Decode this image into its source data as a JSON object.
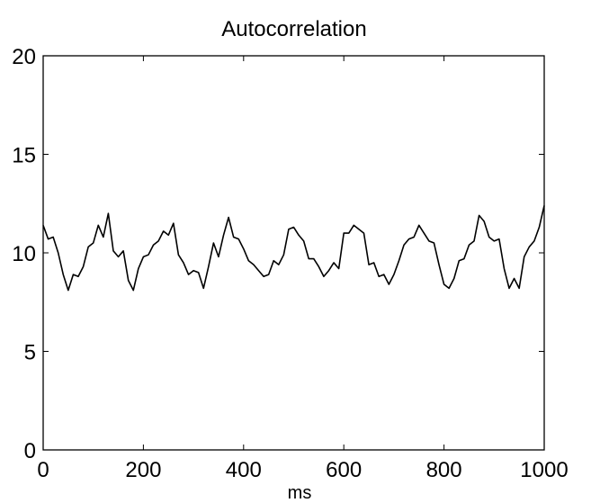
{
  "chart_data": {
    "type": "line",
    "title": "Autocorrelation",
    "xlabel": "ms",
    "ylabel": "",
    "xlim": [
      0,
      1000
    ],
    "ylim": [
      0,
      20
    ],
    "xticks": [
      0,
      200,
      400,
      600,
      800,
      1000
    ],
    "yticks": [
      0,
      5,
      10,
      15,
      20
    ],
    "grid": false,
    "line_color": "#000000",
    "series": [
      {
        "x": [
          0,
          10,
          20,
          30,
          40,
          50,
          60,
          70,
          80,
          90,
          100,
          110,
          120,
          130,
          140,
          150,
          160,
          170,
          180,
          190,
          200,
          210,
          220,
          230,
          240,
          250,
          260,
          270,
          280,
          290,
          300,
          310,
          320,
          330,
          340,
          350,
          360,
          370,
          380,
          390,
          400,
          410,
          420,
          430,
          440,
          450,
          460,
          470,
          480,
          490,
          500,
          510,
          520,
          530,
          540,
          550,
          560,
          570,
          580,
          590,
          600,
          610,
          620,
          630,
          640,
          650,
          660,
          670,
          680,
          690,
          700,
          710,
          720,
          730,
          740,
          750,
          760,
          770,
          780,
          790,
          800,
          810,
          820,
          830,
          840,
          850,
          860,
          870,
          880,
          890,
          900,
          910,
          920,
          930,
          940,
          950,
          960,
          970,
          980,
          990,
          1000
        ],
        "y": [
          11.4,
          10.7,
          10.8,
          10.0,
          8.9,
          8.1,
          8.9,
          8.8,
          9.3,
          10.3,
          10.5,
          11.4,
          10.8,
          12.0,
          10.1,
          9.8,
          10.1,
          8.6,
          8.1,
          9.2,
          9.8,
          9.9,
          10.4,
          10.6,
          11.1,
          10.9,
          11.5,
          9.9,
          9.5,
          8.9,
          9.1,
          9.0,
          8.2,
          9.3,
          10.5,
          9.8,
          10.9,
          11.8,
          10.8,
          10.7,
          10.2,
          9.6,
          9.4,
          9.1,
          8.8,
          8.9,
          9.6,
          9.4,
          9.9,
          11.2,
          11.3,
          10.9,
          10.6,
          9.7,
          9.7,
          9.3,
          8.8,
          9.1,
          9.5,
          9.2,
          11.0,
          11.0,
          11.4,
          11.2,
          11.0,
          9.4,
          9.5,
          8.8,
          8.9,
          8.4,
          8.9,
          9.6,
          10.4,
          10.7,
          10.8,
          11.4,
          11.0,
          10.6,
          10.5,
          9.4,
          8.4,
          8.2,
          8.7,
          9.6,
          9.7,
          10.4,
          10.6,
          11.9,
          11.6,
          10.8,
          10.6,
          10.7,
          9.2,
          8.2,
          8.7,
          8.2,
          9.8,
          10.3,
          10.6,
          11.3,
          12.4
        ]
      }
    ]
  }
}
